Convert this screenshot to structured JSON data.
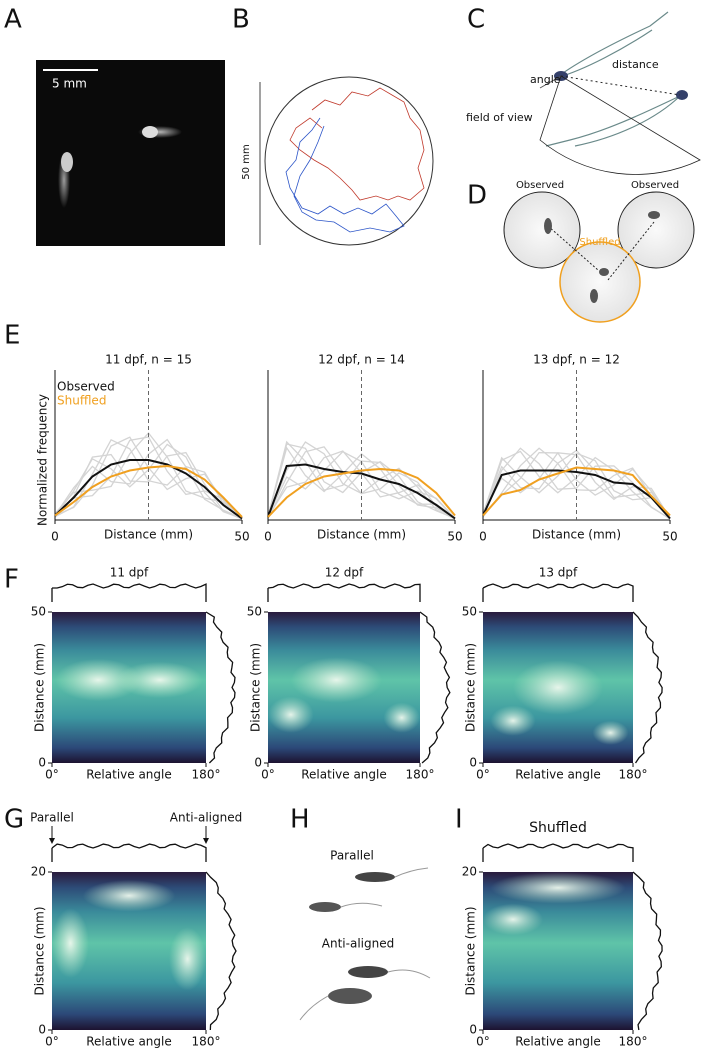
{
  "panel_labels": [
    "A",
    "B",
    "C",
    "D",
    "E",
    "F",
    "G",
    "H",
    "I"
  ],
  "panel_a": {
    "scale_bar": "5 mm"
  },
  "panel_b": {
    "scale_bar": "50 mm"
  },
  "panel_c": {
    "angle": "angle",
    "distance": "distance",
    "field_of_view": "field of view"
  },
  "panel_d": {
    "observed_left": "Observed",
    "observed_right": "Observed",
    "shuffled": "Shuffled"
  },
  "panel_h": {
    "parallel": "Parallel",
    "anti_aligned": "Anti-aligned"
  },
  "chart_data": [
    {
      "type": "line",
      "title": "11 dpf, n = 15",
      "x_label": "Distance (mm)",
      "y_label": "Normalized frequency",
      "x": [
        0,
        5,
        10,
        15,
        20,
        25,
        30,
        35,
        40,
        45,
        50
      ],
      "xlim": [
        0,
        50
      ],
      "xticks": [
        0,
        50
      ],
      "ylim": [
        0,
        1
      ],
      "vline": 25,
      "series": [
        {
          "name": "Observed",
          "color": "#111111",
          "values": [
            0.03,
            0.15,
            0.29,
            0.37,
            0.4,
            0.4,
            0.37,
            0.31,
            0.22,
            0.1,
            0.01
          ]
        },
        {
          "name": "Shuffled",
          "color": "#f0a020",
          "values": [
            0.03,
            0.12,
            0.22,
            0.29,
            0.33,
            0.35,
            0.36,
            0.34,
            0.27,
            0.15,
            0.02
          ]
        }
      ]
    },
    {
      "type": "line",
      "title": "12 dpf, n = 14",
      "x_label": "Distance (mm)",
      "x": [
        0,
        5,
        10,
        15,
        20,
        25,
        30,
        35,
        40,
        45,
        50
      ],
      "xlim": [
        0,
        50
      ],
      "xticks": [
        0,
        50
      ],
      "ylim": [
        0,
        1
      ],
      "vline": 25,
      "series": [
        {
          "color": "#111111",
          "values": [
            0.02,
            0.36,
            0.37,
            0.34,
            0.32,
            0.31,
            0.27,
            0.24,
            0.18,
            0.1,
            0.01
          ]
        },
        {
          "color": "#f0a020",
          "values": [
            0.02,
            0.15,
            0.24,
            0.29,
            0.31,
            0.33,
            0.34,
            0.33,
            0.28,
            0.18,
            0.03
          ]
        }
      ]
    },
    {
      "type": "line",
      "title": "13 dpf, n = 12",
      "x_label": "Distance (mm)",
      "x": [
        0,
        5,
        10,
        15,
        20,
        25,
        30,
        35,
        40,
        45,
        50
      ],
      "xlim": [
        0,
        50
      ],
      "xticks": [
        0,
        50
      ],
      "ylim": [
        0,
        1
      ],
      "vline": 25,
      "series": [
        {
          "color": "#111111",
          "values": [
            0.03,
            0.3,
            0.33,
            0.33,
            0.33,
            0.32,
            0.3,
            0.25,
            0.24,
            0.15,
            0.01
          ]
        },
        {
          "color": "#f0a020",
          "values": [
            0.03,
            0.17,
            0.2,
            0.27,
            0.31,
            0.35,
            0.34,
            0.33,
            0.3,
            0.16,
            0.03
          ]
        }
      ]
    },
    {
      "type": "heatmap",
      "title": "11 dpf",
      "x_label": "Relative angle",
      "y_label": "Distance (mm)",
      "xlim": [
        0,
        180
      ],
      "xticks": [
        {
          "value": 0,
          "label": "0°"
        },
        {
          "value": 180,
          "label": "180°"
        }
      ],
      "ylim": [
        0,
        50
      ],
      "yticks": [
        0,
        50
      ]
    },
    {
      "type": "heatmap",
      "title": "12 dpf",
      "x_label": "Relative angle",
      "y_label": "Distance (mm)",
      "xlim": [
        0,
        180
      ],
      "xticks": [
        {
          "value": 0,
          "label": "0°"
        },
        {
          "value": 180,
          "label": "180°"
        }
      ],
      "ylim": [
        0,
        50
      ],
      "yticks": [
        0,
        50
      ]
    },
    {
      "type": "heatmap",
      "title": "13 dpf",
      "x_label": "Relative angle",
      "y_label": "Distance (mm)",
      "xlim": [
        0,
        180
      ],
      "xticks": [
        {
          "value": 0,
          "label": "0°"
        },
        {
          "value": 180,
          "label": "180°"
        }
      ],
      "ylim": [
        0,
        50
      ],
      "yticks": [
        0,
        50
      ]
    },
    {
      "type": "heatmap",
      "x_label": "Relative angle",
      "y_label": "Distance (mm)",
      "xlim": [
        0,
        180
      ],
      "xticks": [
        {
          "value": 0,
          "label": "0°"
        },
        {
          "value": 180,
          "label": "180°"
        }
      ],
      "ylim": [
        0,
        20
      ],
      "yticks": [
        0,
        20
      ],
      "annotations": [
        {
          "text": "Parallel",
          "x": 0
        },
        {
          "text": "Anti-aligned",
          "x": 180
        }
      ]
    },
    {
      "type": "heatmap",
      "title": "Shuffled",
      "x_label": "Relative angle",
      "y_label": "Distance (mm)",
      "xlim": [
        0,
        180
      ],
      "xticks": [
        {
          "value": 0,
          "label": "0°"
        },
        {
          "value": 180,
          "label": "180°"
        }
      ],
      "ylim": [
        0,
        20
      ],
      "yticks": [
        0,
        20
      ]
    }
  ]
}
